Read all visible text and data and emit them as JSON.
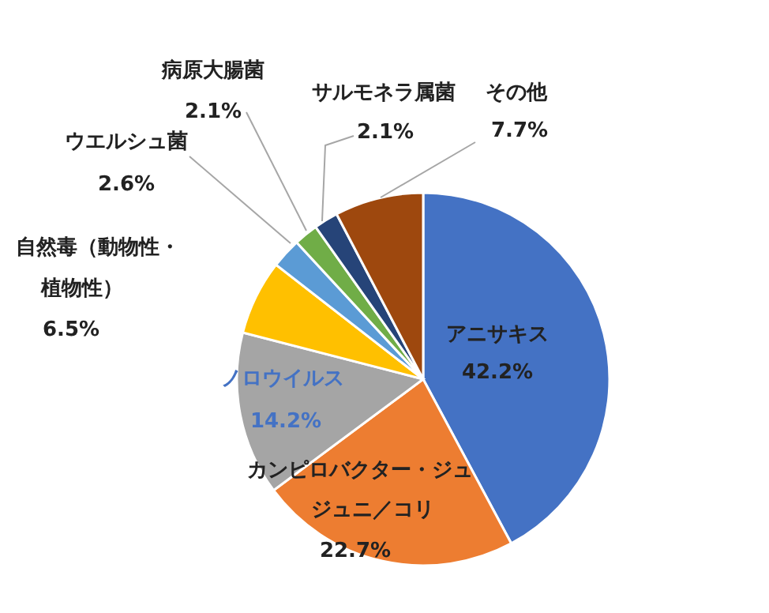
{
  "chart_data": {
    "type": "pie",
    "categories": [
      "アニサキス",
      "カンピロバクター・ジュジュニ／コリ",
      "ノロウイルス",
      "自然毒（動物性・植物性）",
      "ウエルシュ菌",
      "病原大腸菌",
      "サルモネラ属菌",
      "その他"
    ],
    "values": [
      42.2,
      22.7,
      14.2,
      6.5,
      2.6,
      2.1,
      2.1,
      7.7
    ],
    "value_labels": [
      "42.2%",
      "22.7%",
      "14.2%",
      "6.5%",
      "2.6%",
      "2.1%",
      "2.1%",
      "7.7%"
    ],
    "colors": [
      "#4472c4",
      "#ed7d31",
      "#a5a5a5",
      "#ffc000",
      "#5b9bd5",
      "#70ad47",
      "#264478",
      "#9e480e"
    ]
  }
}
